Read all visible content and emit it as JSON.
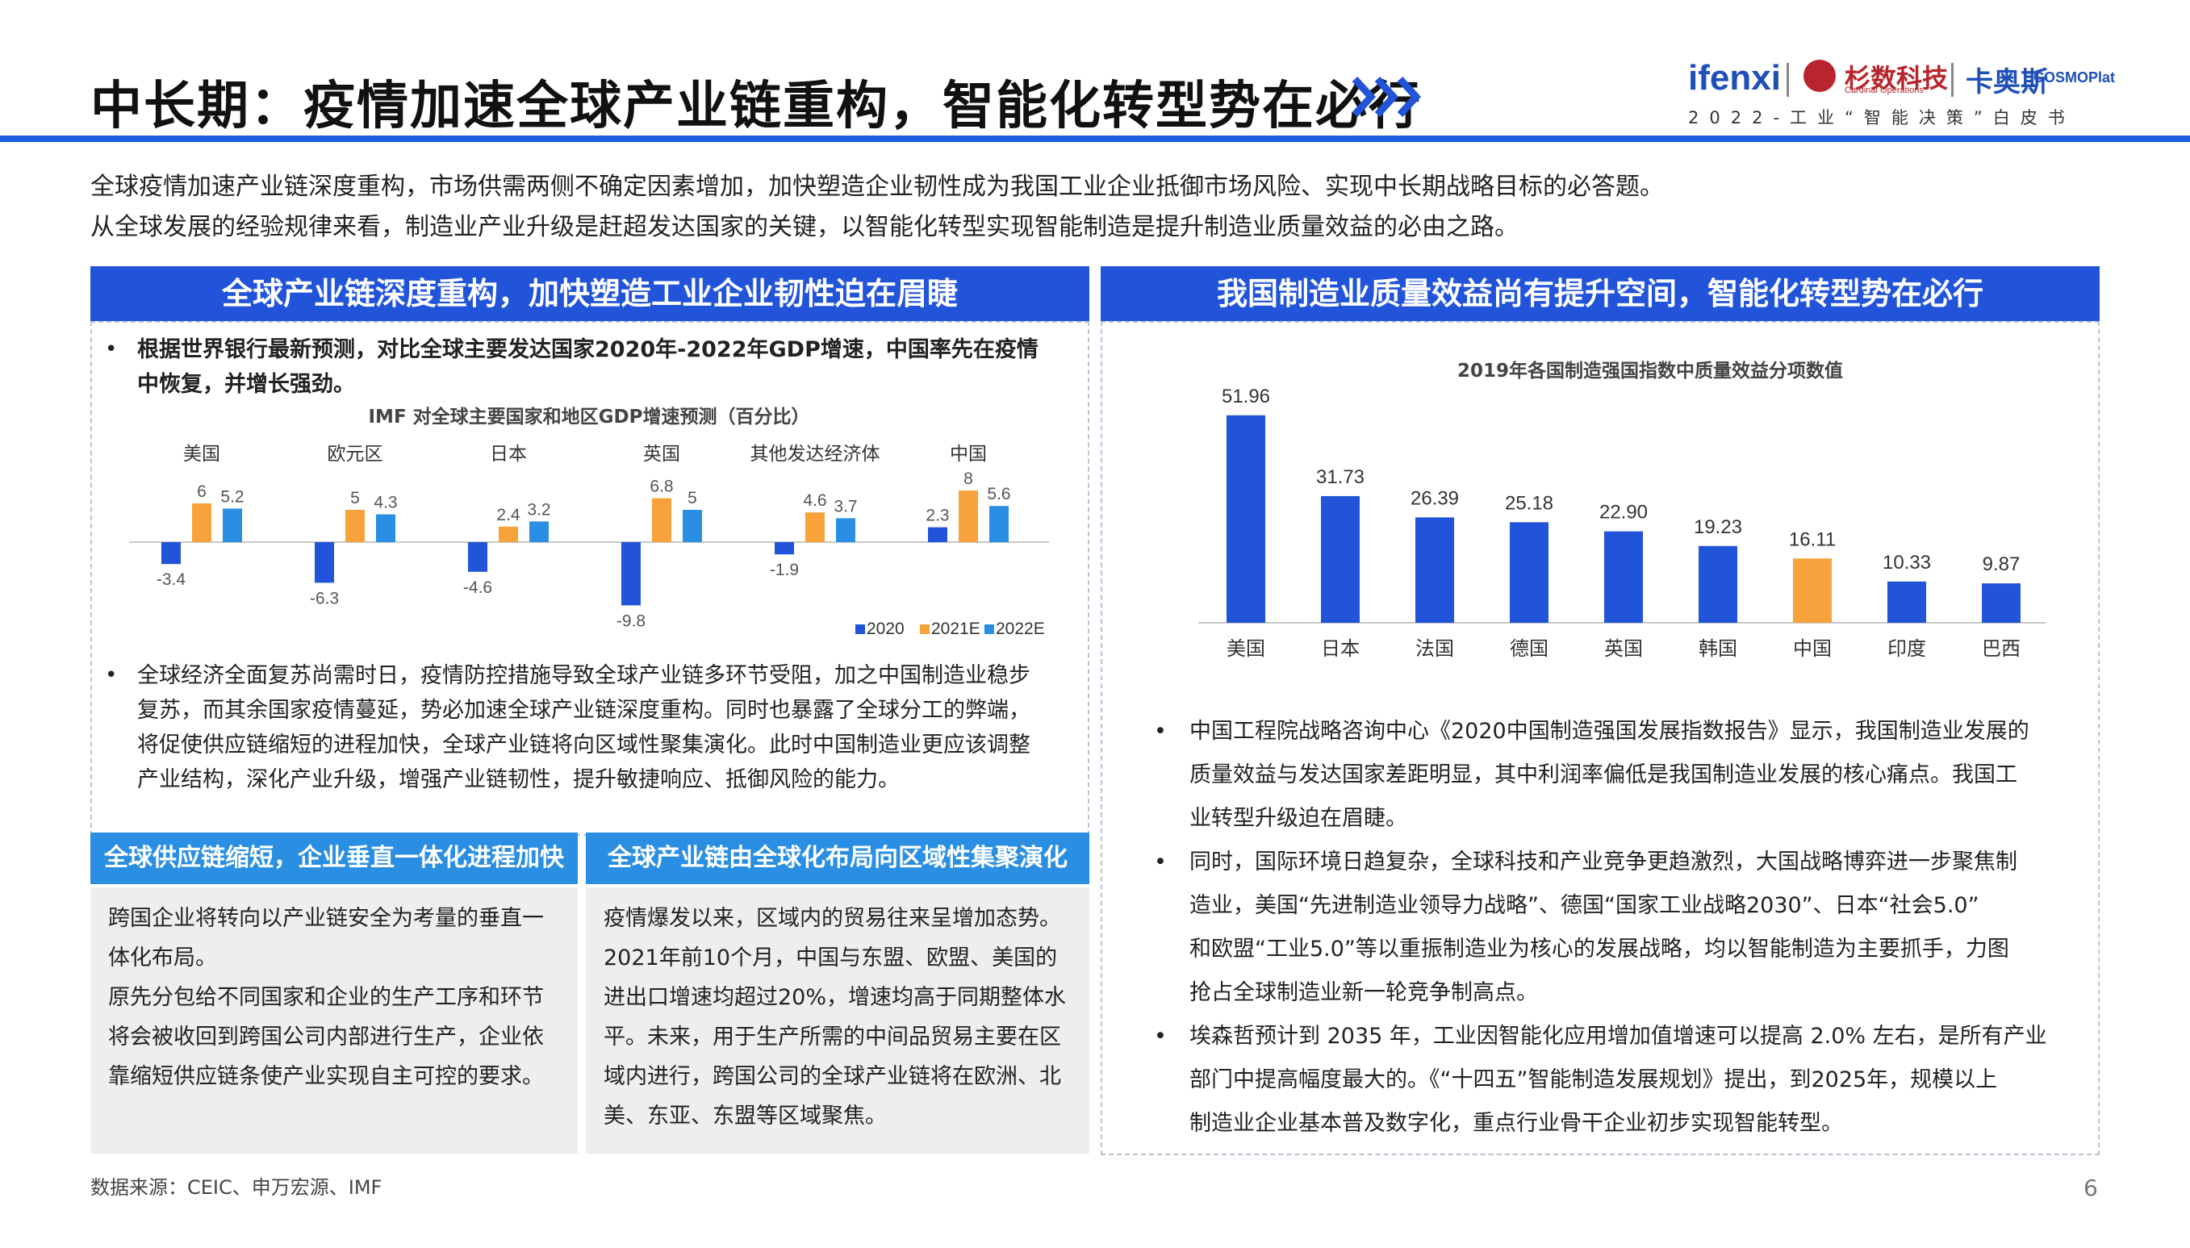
{
  "header": {
    "title": "中长期：疫情加速全球产业链重构，智能化转型势在必行",
    "brand_ifenxi": "ifenxi",
    "brand_shanshu": "杉数科技",
    "brand_shanshu_sub": "Cardinal Operations",
    "brand_kaos": "卡奥斯",
    "brand_cosmo": "COSMOPlat",
    "tagline": "2022-工业“智能决策”白皮书"
  },
  "intro": [
    "全球疫情加速产业链深度重构，市场供需两侧不确定因素增加，加快塑造企业韧性成为我国工业企业抵御市场风险、实现中长期战略目标的必答题。",
    "从全球发展的经验规律来看，制造业产业升级是赶超发达国家的关键，以智能化转型实现智能制造是提升制造业质量效益的必由之路。"
  ],
  "left_panel": {
    "header": "全球产业链深度重构，加快塑造工业企业韧性迫在眉睫",
    "bullet1_lines": [
      "根据世界银行最新预测，对比全球主要发达国家2020年-2022年GDP增速，中国率先在疫情",
      "中恢复，并增长强劲。"
    ],
    "bullet2_lines": [
      "全球经济全面复苏尚需时日，疫情防控措施导致全球产业链多环节受阻，加之中国制造业稳步",
      "复苏，而其余国家疫情蔓延，势必加速全球产业链深度重构。同时也暴露了全球分工的弊端，",
      "将促使供应链缩短的进程加快，全球产业链将向区域性聚集演化。此时中国制造业更应该调整",
      "产业结构，深化产业升级，增强产业链韧性，提升敏捷响应、抵御风险的能力。"
    ],
    "sub_left": {
      "header": "全球供应链缩短，企业垂直一体化进程加快",
      "lines": [
        "跨国企业将转向以产业链安全为考量的垂直一",
        "体化布局。",
        "原先分包给不同国家和企业的生产工序和环节",
        "将会被收回到跨国公司内部进行生产，企业依",
        "靠缩短供应链条使产业实现自主可控的要求。"
      ]
    },
    "sub_right": {
      "header": "全球产业链由全球化布局向区域性集聚演化",
      "lines": [
        "疫情爆发以来，区域内的贸易往来呈增加态势。",
        "2021年前10个月，中国与东盟、欧盟、美国的",
        "进出口增速均超过20%，增速均高于同期整体水",
        "平。未来，用于生产所需的中间品贸易主要在区",
        "域内进行，跨国公司的全球产业链将在欧洲、北",
        "美、东亚、东盟等区域聚焦。"
      ]
    }
  },
  "right_panel": {
    "header": "我国制造业质量效益尚有提升空间，智能化转型势在必行",
    "bullets": [
      [
        "中国工程院战略咨询中心《2020中国制造强国发展指数报告》显示，我国制造业发展的",
        "质量效益与发达国家差距明显，其中利润率偏低是我国制造业发展的核心痛点。我国工",
        "业转型升级迫在眉睫。"
      ],
      [
        "同时，国际环境日趋复杂，全球科技和产业竞争更趋激烈，大国战略博弈进一步聚焦制",
        "造业，美国“先进制造业领导力战略”、德国“国家工业战略2030”、日本“社会5.0”",
        "和欧盟“工业5.0”等以重振制造业为核心的发展战略，均以智能制造为主要抓手，力图",
        "抢占全球制造业新一轮竞争制高点。"
      ],
      [
        "埃森哲预计到 2035 年，工业因智能化应用增加值增速可以提高 2.0% 左右，是所有产业",
        "部门中提高幅度最大的。《“十四五”智能制造发展规划》提出，到2025年，规模以上",
        "制造业企业基本普及数字化，重点行业骨干企业初步实现智能转型。"
      ]
    ]
  },
  "footer": {
    "source": "数据来源：CEIC、申万宏源、IMF",
    "page": "6"
  },
  "chart_data": [
    {
      "type": "bar",
      "title": "IMF 对全球主要国家和地区GDP增速预测（百分比）",
      "categories": [
        "美国",
        "欧元区",
        "日本",
        "英国",
        "其他发达经济体",
        "中国"
      ],
      "series": [
        {
          "name": "2020",
          "color": "#2154d9",
          "values": [
            -3.4,
            -6.3,
            -4.6,
            -9.8,
            -1.9,
            2.3
          ]
        },
        {
          "name": "2021E",
          "color": "#f7a23b",
          "values": [
            6.0,
            5.0,
            2.4,
            6.8,
            4.6,
            8.0
          ]
        },
        {
          "name": "2022E",
          "color": "#2a8fe2",
          "values": [
            5.2,
            4.3,
            3.2,
            5.0,
            3.7,
            5.6
          ]
        }
      ],
      "legend": "bottom-right"
    },
    {
      "type": "bar",
      "title": "2019年各国制造强国指数中质量效益分项数值",
      "categories": [
        "美国",
        "日本",
        "法国",
        "德国",
        "英国",
        "韩国",
        "中国",
        "印度",
        "巴西"
      ],
      "values": [
        51.96,
        31.73,
        26.39,
        25.18,
        22.9,
        19.23,
        16.11,
        10.33,
        9.87
      ],
      "value_labels": [
        "51.96",
        "31.73",
        "26.39",
        "25.18",
        "22.90",
        "19.23",
        "16.11",
        "10.33",
        "9.87"
      ],
      "bar_color": "#2154d9",
      "highlight_color": "#f7a23b",
      "highlight_category": "中国"
    }
  ]
}
